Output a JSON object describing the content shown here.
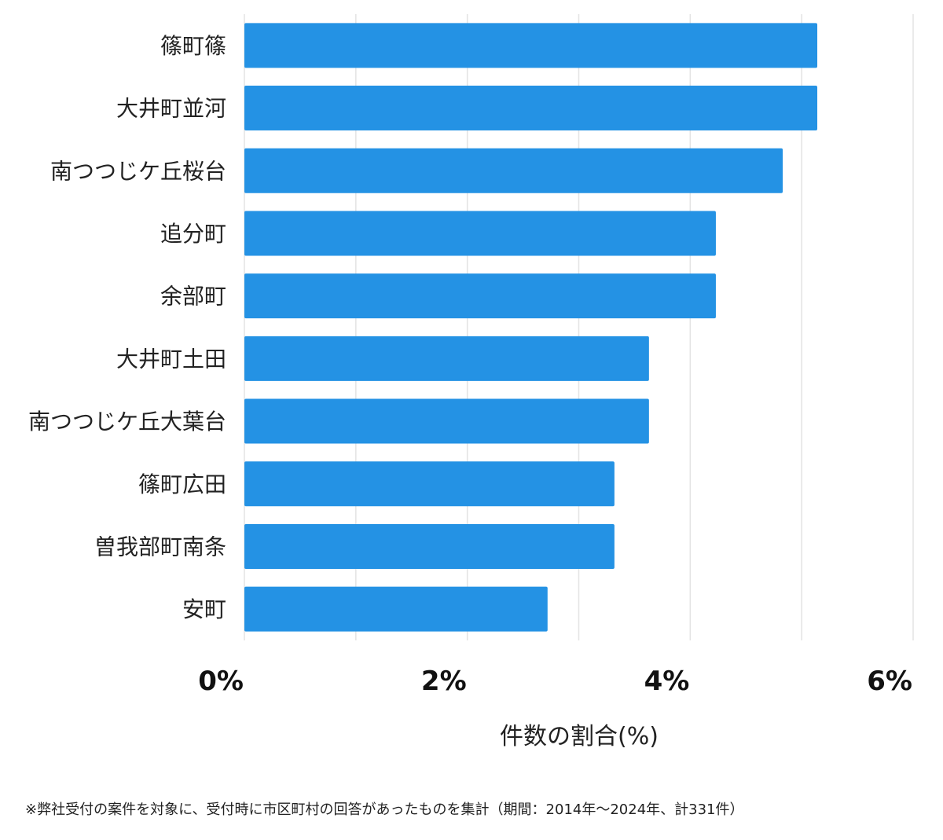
{
  "chart_data": {
    "type": "bar",
    "orientation": "horizontal",
    "categories": [
      "篠町篠",
      "大井町並河",
      "南つつじケ丘桜台",
      "追分町",
      "余部町",
      "大井町土田",
      "南つつじケ丘大葉台",
      "篠町広田",
      "曽我部町南条",
      "安町"
    ],
    "values": [
      5.14,
      5.14,
      4.83,
      4.23,
      4.23,
      3.63,
      3.63,
      3.32,
      3.32,
      2.72
    ],
    "xlabel": "件数の割合(%)",
    "ylabel": "",
    "xlim": [
      0,
      6
    ],
    "xticks": [
      0,
      2,
      4,
      6
    ],
    "xtick_labels": [
      "0%",
      "2%",
      "4%",
      "6%"
    ],
    "gridlines_at": [
      0,
      1,
      2,
      3,
      4,
      5,
      6
    ],
    "grid": true,
    "bar_color": "#2492e4",
    "footnote": "※弊社受付の案件を対象に、受付時に市区町村の回答があったものを集計（期間：2014年〜2024年、計331件）"
  }
}
